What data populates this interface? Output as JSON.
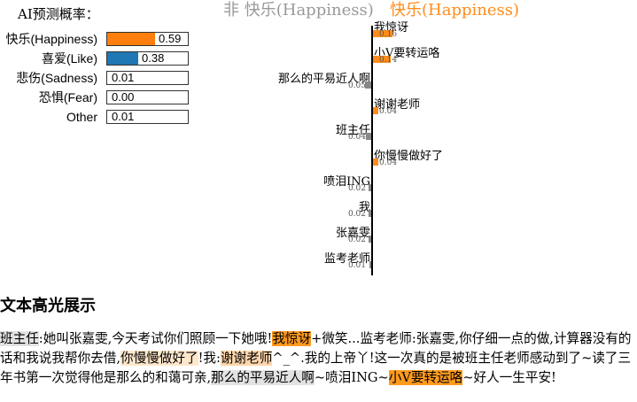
{
  "probabilities": {
    "title": "AI预测概率：",
    "items": [
      {
        "label": "快乐(Happiness)",
        "value": 0.59,
        "value_text": "0.59",
        "color": "#ff7f0e"
      },
      {
        "label": "喜爱(Like)",
        "value": 0.38,
        "value_text": "0.38",
        "color": "#1f77b4"
      },
      {
        "label": "悲伤(Sadness)",
        "value": 0.01,
        "value_text": "0.01",
        "color": "#ffffff"
      },
      {
        "label": "恐惧(Fear)",
        "value": 0.0,
        "value_text": "0.00",
        "color": "#ffffff"
      },
      {
        "label": "Other",
        "value": 0.01,
        "value_text": "0.01",
        "color": "#ffffff"
      }
    ]
  },
  "features": {
    "negative_header": "非 快乐(Happiness)",
    "positive_header": "快乐(Happiness)",
    "positive_color": "#ff8c1a",
    "negative_color": "#888888",
    "items": [
      {
        "text": "我惊讶",
        "value": 0.16,
        "value_text": "0.16",
        "side": "pos"
      },
      {
        "text": "小V要转运咯",
        "value": 0.14,
        "value_text": "0.14",
        "side": "pos"
      },
      {
        "text": "那么的平易近人啊",
        "value": 0.05,
        "value_text": "0.05",
        "side": "neg"
      },
      {
        "text": "谢谢老师",
        "value": 0.04,
        "value_text": "0.04",
        "side": "pos"
      },
      {
        "text": "班主任",
        "value": 0.04,
        "value_text": "0.04",
        "side": "neg"
      },
      {
        "text": "你慢慢做好了",
        "value": 0.04,
        "value_text": "0.04",
        "side": "pos"
      },
      {
        "text": "喷泪ING",
        "value": 0.02,
        "value_text": "0.02",
        "side": "neg"
      },
      {
        "text": "我",
        "value": 0.02,
        "value_text": "0.02",
        "side": "neg"
      },
      {
        "text": "张嘉雯",
        "value": 0.02,
        "value_text": "0.02",
        "side": "neg"
      },
      {
        "text": "监考老师",
        "value": 0.01,
        "value_text": "0.01",
        "side": "neg"
      }
    ]
  },
  "highlight": {
    "title": "文本高光展示",
    "segments": [
      {
        "text": "班主任",
        "style": "neg"
      },
      {
        "text": ":她叫张嘉雯,今天考试你们照顾一下她哦!",
        "style": "none"
      },
      {
        "text": "我惊讶",
        "style": "pos"
      },
      {
        "text": "+微笑...监考老师:张嘉雯,你仔细一点的做,计算器没有的话和我说我帮你去借,",
        "style": "none"
      },
      {
        "text": "你慢慢做好了",
        "style": "pos-faint"
      },
      {
        "text": "!我:",
        "style": "none"
      },
      {
        "text": "谢谢老师",
        "style": "pos-lite"
      },
      {
        "text": "^_^.我的上帝丫!这一次真的是被班主任老师感动到了~读了三年书第一次觉得他是那么的和蔼可亲,",
        "style": "none"
      },
      {
        "text": "那么的平易近人啊",
        "style": "neg"
      },
      {
        "text": "~喷泪ING~",
        "style": "none"
      },
      {
        "text": "小V要转运咯",
        "style": "pos"
      },
      {
        "text": "~好人一生平安!",
        "style": "none"
      }
    ]
  }
}
